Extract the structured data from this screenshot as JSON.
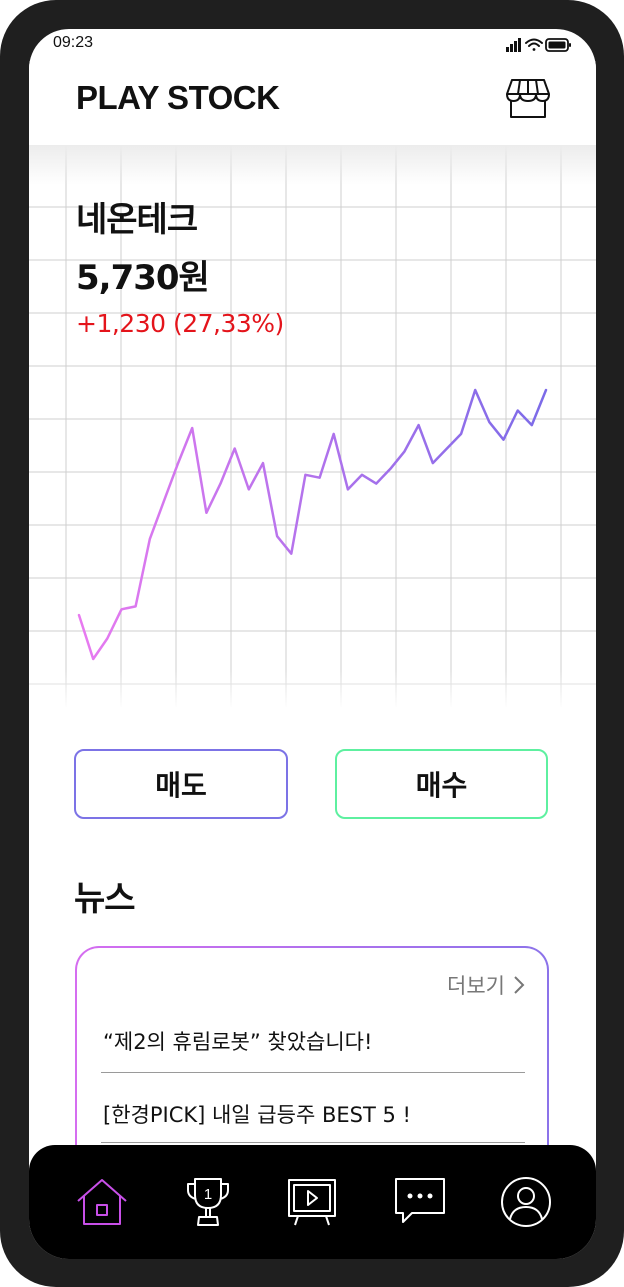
{
  "status_bar": {
    "time": "09:23"
  },
  "header": {
    "title": "PLAY STOCK",
    "store_icon": "store-awning-icon"
  },
  "stock": {
    "name": "네온테크",
    "price": "5,730원",
    "change": "+1,230 (27,33%)",
    "change_color": "#e4141b"
  },
  "chart_data": {
    "type": "line",
    "values": [
      28,
      13,
      20,
      30,
      31,
      54,
      67,
      80,
      92,
      63,
      73,
      85,
      71,
      80,
      55,
      49,
      76,
      75,
      90,
      71,
      76,
      73,
      78,
      84,
      93,
      80,
      85,
      90,
      105,
      94,
      88,
      98,
      93,
      105
    ],
    "gradient": [
      "#e87af0",
      "#7c6be8"
    ],
    "grid": true
  },
  "actions": {
    "sell_label": "매도",
    "buy_label": "매수",
    "sell_color": "#7c73e6",
    "buy_color": "#5ef0a0"
  },
  "news": {
    "section_title": "뉴스",
    "more_label": "더보기",
    "items": [
      "“제2의 휴림로봇” 찾았습니다!",
      "[한경PICK] 내일 급등주 BEST 5 !"
    ]
  },
  "tab_bar": {
    "tabs": [
      {
        "icon": "home-icon",
        "active": true
      },
      {
        "icon": "trophy-icon",
        "badge": "1"
      },
      {
        "icon": "tv-icon"
      },
      {
        "icon": "chat-bubble-icon"
      },
      {
        "icon": "profile-icon"
      }
    ],
    "active_color": "#c84fe8"
  }
}
